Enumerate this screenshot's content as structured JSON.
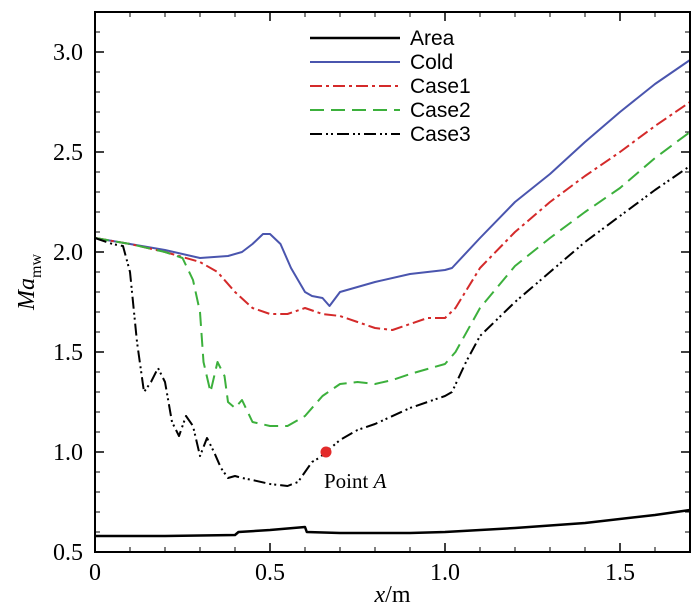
{
  "chart_data": {
    "type": "line",
    "title": "",
    "xlabel": {
      "var": "x",
      "unit": "/m"
    },
    "ylabel": {
      "var": "Ma",
      "sub": "mw"
    },
    "xlim": [
      0,
      1.7
    ],
    "ylim": [
      0.5,
      3.2
    ],
    "xticks": [
      0,
      0.5,
      1.0,
      1.5
    ],
    "xtick_labels": [
      "0",
      "0.5",
      "1.0",
      "1.5"
    ],
    "yticks": [
      0.5,
      1.0,
      1.5,
      2.0,
      2.5,
      3.0
    ],
    "ytick_labels": [
      "0.5",
      "1.0",
      "1.5",
      "2.0",
      "2.5",
      "3.0"
    ],
    "legend_position": "top-center",
    "series": [
      {
        "name": "Area",
        "color": "#000000",
        "dash": "solid",
        "x": [
          0,
          0.2,
          0.4,
          0.41,
          0.5,
          0.6,
          0.605,
          0.7,
          0.9,
          1.0,
          1.2,
          1.4,
          1.6,
          1.7
        ],
        "y": [
          0.58,
          0.58,
          0.585,
          0.6,
          0.61,
          0.625,
          0.6,
          0.595,
          0.595,
          0.6,
          0.62,
          0.645,
          0.685,
          0.71
        ]
      },
      {
        "name": "Cold",
        "color": "#4a55ae",
        "dash": "solid",
        "x": [
          0,
          0.1,
          0.2,
          0.3,
          0.38,
          0.42,
          0.45,
          0.48,
          0.5,
          0.53,
          0.56,
          0.6,
          0.62,
          0.65,
          0.67,
          0.7,
          0.8,
          0.9,
          1.0,
          1.02,
          1.1,
          1.2,
          1.3,
          1.4,
          1.5,
          1.6,
          1.7
        ],
        "y": [
          2.07,
          2.04,
          2.01,
          1.97,
          1.98,
          2.0,
          2.04,
          2.09,
          2.09,
          2.04,
          1.92,
          1.8,
          1.78,
          1.77,
          1.73,
          1.8,
          1.85,
          1.89,
          1.91,
          1.92,
          2.07,
          2.25,
          2.39,
          2.55,
          2.7,
          2.84,
          2.96
        ]
      },
      {
        "name": "Case1",
        "color": "#d42a2a",
        "dash": "12,4,3,4",
        "x": [
          0,
          0.1,
          0.2,
          0.3,
          0.35,
          0.4,
          0.45,
          0.5,
          0.55,
          0.6,
          0.65,
          0.7,
          0.75,
          0.8,
          0.85,
          0.9,
          0.95,
          1.0,
          1.03,
          1.1,
          1.2,
          1.3,
          1.4,
          1.5,
          1.6,
          1.7
        ],
        "y": [
          2.07,
          2.04,
          2.0,
          1.95,
          1.9,
          1.8,
          1.72,
          1.69,
          1.69,
          1.72,
          1.69,
          1.68,
          1.65,
          1.62,
          1.61,
          1.64,
          1.67,
          1.67,
          1.72,
          1.92,
          2.1,
          2.25,
          2.38,
          2.5,
          2.63,
          2.75
        ]
      },
      {
        "name": "Case2",
        "color": "#3cb03c",
        "dash": "14,7",
        "x": [
          0,
          0.1,
          0.2,
          0.25,
          0.28,
          0.3,
          0.31,
          0.33,
          0.35,
          0.37,
          0.38,
          0.4,
          0.42,
          0.45,
          0.5,
          0.55,
          0.6,
          0.65,
          0.7,
          0.75,
          0.8,
          0.85,
          0.9,
          1.0,
          1.03,
          1.1,
          1.2,
          1.3,
          1.4,
          1.5,
          1.6,
          1.7
        ],
        "y": [
          2.07,
          2.04,
          2.0,
          1.97,
          1.86,
          1.7,
          1.45,
          1.3,
          1.45,
          1.38,
          1.25,
          1.22,
          1.26,
          1.15,
          1.13,
          1.13,
          1.18,
          1.28,
          1.34,
          1.35,
          1.34,
          1.36,
          1.39,
          1.44,
          1.5,
          1.72,
          1.93,
          2.07,
          2.2,
          2.32,
          2.47,
          2.6
        ]
      },
      {
        "name": "Case3",
        "color": "#000000",
        "dash": "12,4,2,3,2,4",
        "x": [
          0,
          0.05,
          0.08,
          0.1,
          0.12,
          0.14,
          0.16,
          0.18,
          0.2,
          0.22,
          0.24,
          0.26,
          0.28,
          0.3,
          0.32,
          0.34,
          0.36,
          0.38,
          0.4,
          0.42,
          0.45,
          0.5,
          0.55,
          0.58,
          0.6,
          0.62,
          0.64,
          0.66,
          0.7,
          0.75,
          0.8,
          0.9,
          1.0,
          1.02,
          1.06,
          1.1,
          1.2,
          1.3,
          1.4,
          1.5,
          1.6,
          1.7
        ],
        "y": [
          2.07,
          2.04,
          2.03,
          1.9,
          1.55,
          1.3,
          1.35,
          1.42,
          1.35,
          1.15,
          1.08,
          1.18,
          1.13,
          0.98,
          1.07,
          1.0,
          0.92,
          0.87,
          0.88,
          0.87,
          0.86,
          0.84,
          0.83,
          0.85,
          0.9,
          0.95,
          0.97,
          1.0,
          1.06,
          1.11,
          1.14,
          1.22,
          1.28,
          1.3,
          1.45,
          1.58,
          1.75,
          1.9,
          2.05,
          2.18,
          2.31,
          2.43
        ]
      }
    ],
    "annotations": [
      {
        "text": "Point ",
        "var": "A",
        "x": 0.66,
        "y": 1.0,
        "marker_color": "#e32b2b"
      }
    ]
  }
}
